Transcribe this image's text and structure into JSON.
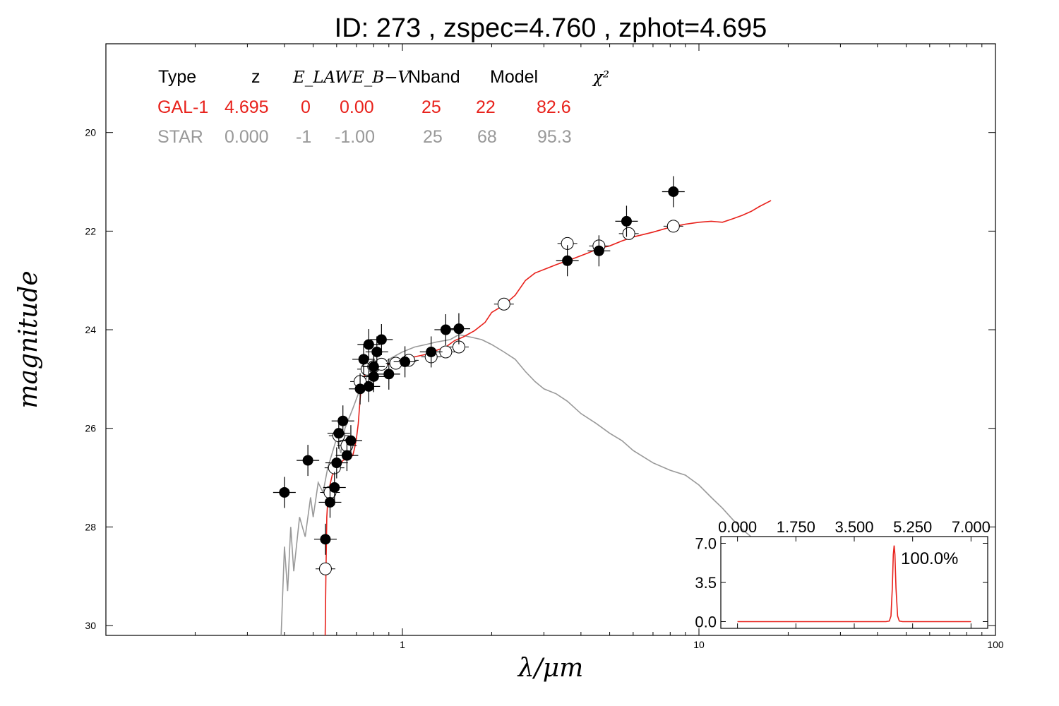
{
  "chart_data": [
    {
      "type": "scatter",
      "title": "ID:  273   , zspec=4.760 , zphot=4.695",
      "xlabel": "λ/μm",
      "ylabel": "magnitude",
      "xscale": "log",
      "xlim": [
        0.1,
        100
      ],
      "ylim": [
        30.2,
        18.2
      ],
      "y_inverted": true,
      "x_ticks": [
        {
          "value": 1,
          "label": "1"
        },
        {
          "value": 10,
          "label": "10"
        },
        {
          "value": 100,
          "label": "100"
        }
      ],
      "y_ticks": [
        {
          "value": 20,
          "label": "20"
        },
        {
          "value": 22,
          "label": "22"
        },
        {
          "value": 24,
          "label": "24"
        },
        {
          "value": 26,
          "label": "26"
        },
        {
          "value": 28,
          "label": "28"
        },
        {
          "value": 30,
          "label": "30"
        }
      ],
      "legend_table": {
        "headers": [
          "Type",
          "z",
          "E_LAW",
          "E_B−V",
          "Nband",
          "Model",
          "χ²"
        ],
        "rows": [
          {
            "values": [
              "GAL-1",
              "4.695",
              "0",
              "0.00",
              "25",
              "22",
              "82.6"
            ],
            "color": "#e8211b"
          },
          {
            "values": [
              "STAR",
              "0.000",
              "-1",
              "-1.00",
              "25",
              "68",
              "95.3"
            ],
            "color": "#999999"
          }
        ]
      },
      "series": [
        {
          "name": "GAL-1",
          "kind": "line",
          "color": "#e8211b",
          "points": [
            [
              0.549,
              30.2
            ],
            [
              0.552,
              29.0
            ],
            [
              0.556,
              27.8
            ],
            [
              0.562,
              27.3
            ],
            [
              0.58,
              26.95
            ],
            [
              0.6,
              26.85
            ],
            [
              0.63,
              26.65
            ],
            [
              0.66,
              26.6
            ],
            [
              0.68,
              26.55
            ],
            [
              0.69,
              26.4
            ],
            [
              0.7,
              26.2
            ],
            [
              0.71,
              25.9
            ],
            [
              0.72,
              25.4
            ],
            [
              0.73,
              25.05
            ],
            [
              0.74,
              24.95
            ],
            [
              0.76,
              24.88
            ],
            [
              0.8,
              24.82
            ],
            [
              0.85,
              24.75
            ],
            [
              0.9,
              24.7
            ],
            [
              1.0,
              24.62
            ],
            [
              1.1,
              24.55
            ],
            [
              1.2,
              24.5
            ],
            [
              1.3,
              24.42
            ],
            [
              1.4,
              24.35
            ],
            [
              1.5,
              24.22
            ],
            [
              1.6,
              24.15
            ],
            [
              1.75,
              24.02
            ],
            [
              1.9,
              23.85
            ],
            [
              2.0,
              23.65
            ],
            [
              2.2,
              23.5
            ],
            [
              2.4,
              23.3
            ],
            [
              2.6,
              23.0
            ],
            [
              2.8,
              22.85
            ],
            [
              3.0,
              22.78
            ],
            [
              3.3,
              22.68
            ],
            [
              3.6,
              22.6
            ],
            [
              3.8,
              22.55
            ],
            [
              4.2,
              22.45
            ],
            [
              4.6,
              22.35
            ],
            [
              5.0,
              22.3
            ],
            [
              5.5,
              22.2
            ],
            [
              6.0,
              22.12
            ],
            [
              7.0,
              22.02
            ],
            [
              8.0,
              21.92
            ],
            [
              9.0,
              21.86
            ],
            [
              10.0,
              21.82
            ],
            [
              11.0,
              21.8
            ],
            [
              12.0,
              21.82
            ],
            [
              13.0,
              21.75
            ],
            [
              14.0,
              21.68
            ],
            [
              15.0,
              21.6
            ],
            [
              16.0,
              21.5
            ],
            [
              17.5,
              21.38
            ]
          ]
        },
        {
          "name": "STAR",
          "kind": "line",
          "color": "#999999",
          "points": [
            [
              0.39,
              30.2
            ],
            [
              0.4,
              28.4
            ],
            [
              0.41,
              29.3
            ],
            [
              0.42,
              28.0
            ],
            [
              0.43,
              28.9
            ],
            [
              0.45,
              27.8
            ],
            [
              0.47,
              28.2
            ],
            [
              0.49,
              27.4
            ],
            [
              0.5,
              27.8
            ],
            [
              0.52,
              27.1
            ],
            [
              0.54,
              27.3
            ],
            [
              0.56,
              26.8
            ],
            [
              0.58,
              26.5
            ],
            [
              0.6,
              26.2
            ],
            [
              0.62,
              26.5
            ],
            [
              0.64,
              26.0
            ],
            [
              0.66,
              25.8
            ],
            [
              0.68,
              25.6
            ],
            [
              0.7,
              25.4
            ],
            [
              0.72,
              25.2
            ],
            [
              0.74,
              25.1
            ],
            [
              0.76,
              24.95
            ],
            [
              0.8,
              24.85
            ],
            [
              0.85,
              24.7
            ],
            [
              0.9,
              24.6
            ],
            [
              1.0,
              24.45
            ],
            [
              1.1,
              24.35
            ],
            [
              1.2,
              24.3
            ],
            [
              1.3,
              24.25
            ],
            [
              1.45,
              24.2
            ],
            [
              1.55,
              24.1
            ],
            [
              1.7,
              24.15
            ],
            [
              1.85,
              24.2
            ],
            [
              2.0,
              24.3
            ],
            [
              2.2,
              24.45
            ],
            [
              2.4,
              24.6
            ],
            [
              2.6,
              24.85
            ],
            [
              2.8,
              25.05
            ],
            [
              3.0,
              25.2
            ],
            [
              3.3,
              25.3
            ],
            [
              3.6,
              25.45
            ],
            [
              4.0,
              25.7
            ],
            [
              4.5,
              25.9
            ],
            [
              5.0,
              26.1
            ],
            [
              5.5,
              26.25
            ],
            [
              6.0,
              26.45
            ],
            [
              7.0,
              26.7
            ],
            [
              8.0,
              26.85
            ],
            [
              9.0,
              26.95
            ],
            [
              10.0,
              27.15
            ],
            [
              11.0,
              27.4
            ],
            [
              12.0,
              27.62
            ],
            [
              13.0,
              27.85
            ],
            [
              14.0,
              28.05
            ],
            [
              15.0,
              28.2
            ],
            [
              16.0,
              28.35
            ],
            [
              17.0,
              28.48
            ]
          ]
        },
        {
          "name": "Observed",
          "kind": "points",
          "marker": "filled",
          "color": "#000000",
          "points": [
            [
              0.4,
              27.3
            ],
            [
              0.48,
              26.65
            ],
            [
              0.55,
              28.25
            ],
            [
              0.57,
              27.5
            ],
            [
              0.59,
              27.2
            ],
            [
              0.6,
              26.7
            ],
            [
              0.61,
              26.1
            ],
            [
              0.63,
              25.85
            ],
            [
              0.65,
              26.55
            ],
            [
              0.67,
              26.25
            ],
            [
              0.72,
              25.2
            ],
            [
              0.74,
              24.6
            ],
            [
              0.77,
              25.15
            ],
            [
              0.77,
              24.3
            ],
            [
              0.8,
              24.75
            ],
            [
              0.8,
              24.95
            ],
            [
              0.82,
              24.45
            ],
            [
              0.85,
              24.2
            ],
            [
              0.9,
              24.9
            ],
            [
              1.02,
              24.65
            ],
            [
              1.25,
              24.45
            ],
            [
              1.4,
              24.0
            ],
            [
              1.55,
              23.98
            ],
            [
              3.6,
              22.6
            ],
            [
              4.6,
              22.4
            ],
            [
              5.7,
              21.8
            ],
            [
              8.2,
              21.2
            ]
          ]
        },
        {
          "name": "Model",
          "kind": "points",
          "marker": "open",
          "color": "#000000",
          "points": [
            [
              0.55,
              28.85
            ],
            [
              0.57,
              27.3
            ],
            [
              0.59,
              26.8
            ],
            [
              0.61,
              26.15
            ],
            [
              0.65,
              26.35
            ],
            [
              0.72,
              25.05
            ],
            [
              0.76,
              24.8
            ],
            [
              0.8,
              24.75
            ],
            [
              0.85,
              24.7
            ],
            [
              0.95,
              24.68
            ],
            [
              1.05,
              24.62
            ],
            [
              1.25,
              24.55
            ],
            [
              1.4,
              24.45
            ],
            [
              1.55,
              24.35
            ],
            [
              2.2,
              23.48
            ],
            [
              3.6,
              22.25
            ],
            [
              4.6,
              22.3
            ],
            [
              5.8,
              22.05
            ],
            [
              8.2,
              21.9
            ]
          ]
        }
      ]
    },
    {
      "type": "line",
      "inset": true,
      "x_ticks": [
        "0.000",
        "1.750",
        "3.500",
        "5.250",
        "7.000"
      ],
      "y_ticks": [
        "0.0",
        "3.5",
        "7.0"
      ],
      "xlim": [
        -0.5,
        7.5
      ],
      "ylim": [
        -0.6,
        7.6
      ],
      "annotation": "100.0%",
      "series": [
        {
          "name": "PDF",
          "color": "#e8211b",
          "points": [
            [
              0.0,
              0.0
            ],
            [
              4.45,
              0.0
            ],
            [
              4.55,
              0.05
            ],
            [
              4.6,
              0.5
            ],
            [
              4.64,
              3.0
            ],
            [
              4.67,
              6.0
            ],
            [
              4.695,
              6.8
            ],
            [
              4.72,
              6.0
            ],
            [
              4.75,
              3.0
            ],
            [
              4.8,
              0.5
            ],
            [
              4.85,
              0.05
            ],
            [
              4.95,
              0.0
            ],
            [
              7.0,
              0.0
            ]
          ]
        }
      ]
    }
  ]
}
